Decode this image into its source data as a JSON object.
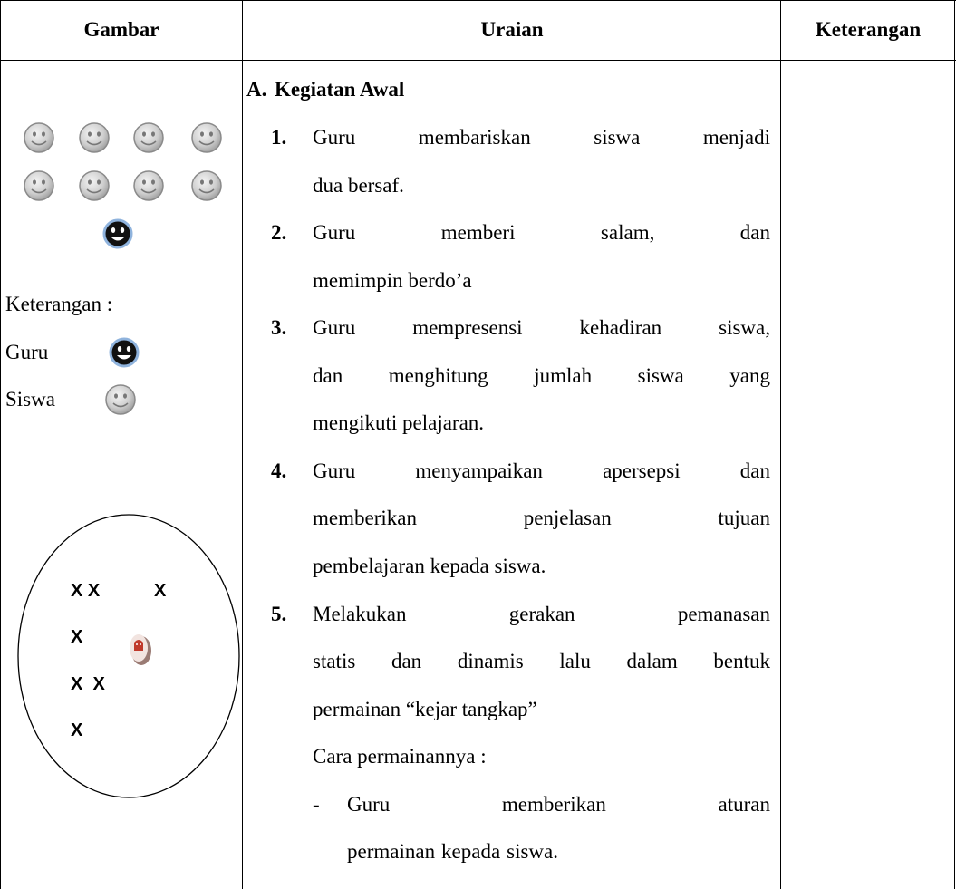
{
  "header": {
    "columns": [
      "Gambar",
      "Uraian",
      "Keterangan"
    ]
  },
  "gambar": {
    "legend": {
      "title": "Keterangan :",
      "items": [
        "Guru",
        "Siswa"
      ]
    },
    "game_marks": [
      "X X",
      "X",
      "X",
      "X  X",
      "X"
    ]
  },
  "uraian": {
    "section": {
      "label": "A.",
      "title": "Kegiatan Awal"
    },
    "items": [
      {
        "number": "1.",
        "lines": [
          "Guru membariskan siswa menjadi",
          "dua bersaf."
        ]
      },
      {
        "number": "2.",
        "lines": [
          "Guru memberi salam, dan",
          "memimpin berdo’a"
        ]
      },
      {
        "number": "3.",
        "lines": [
          "Guru mempresensi kehadiran siswa,",
          "dan menghitung jumlah siswa yang",
          "mengikuti pelajaran."
        ]
      },
      {
        "number": "4.",
        "lines": [
          "Guru menyampaikan apersepsi dan",
          "memberikan penjelasan tujuan",
          "pembelajaran kepada siswa."
        ]
      },
      {
        "number": "5.",
        "lines": [
          "Melakukan gerakan pemanasan",
          "statis dan dinamis lalu dalam bentuk",
          "permainan “kejar tangkap”"
        ]
      }
    ],
    "note": "Cara permainannya :",
    "steps": [
      {
        "bullet": "-",
        "lines": [
          "Guru memberikan aturan",
          "permainan kepada siswa."
        ]
      }
    ]
  }
}
